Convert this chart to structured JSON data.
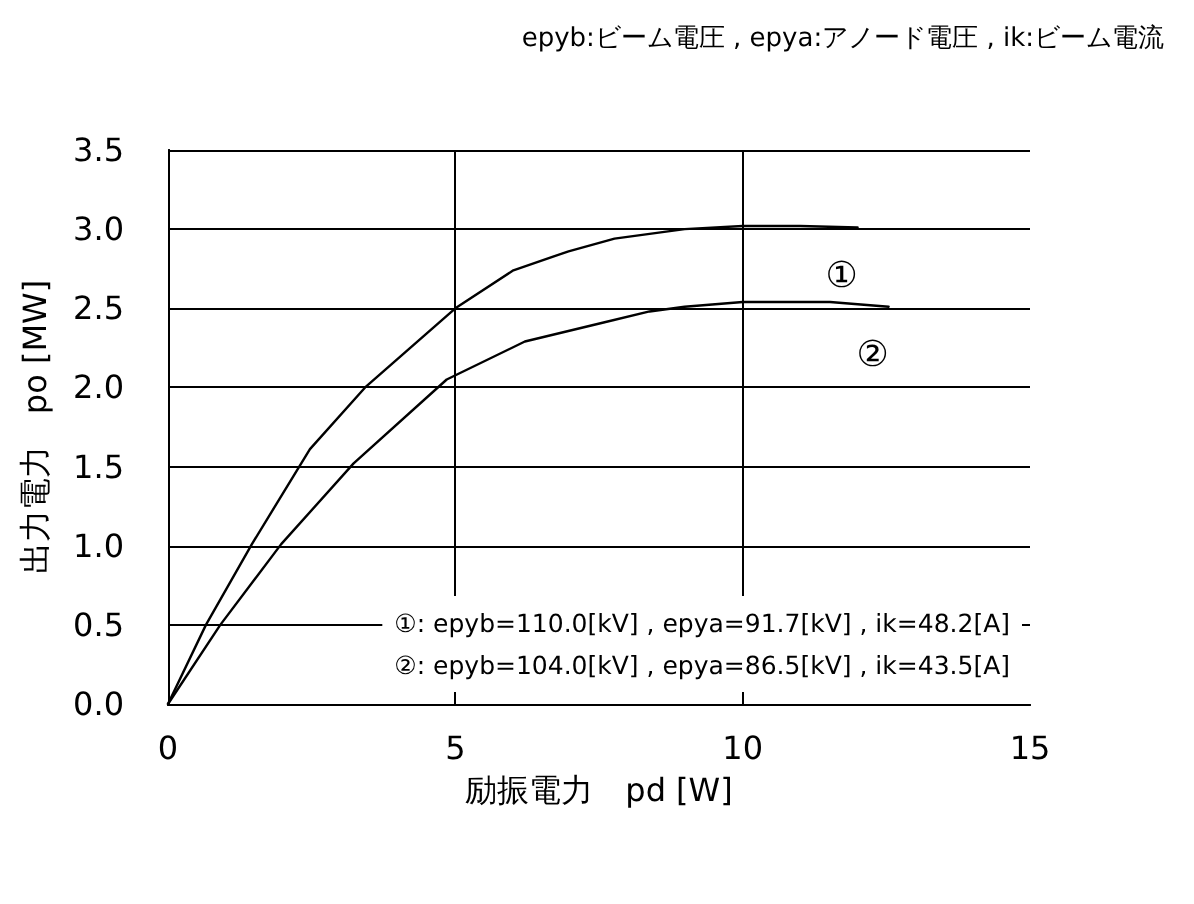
{
  "chart_data": {
    "type": "line",
    "title": "epyb:ビーム電圧 , epya:アノード電圧 , ik:ビーム電流",
    "xlabel": "励振電力　pd [W]",
    "ylabel": "出力電力　po [MW]",
    "series": [
      {
        "name": "①",
        "color": "#000000",
        "x": [
          0,
          0.66,
          1.46,
          2.47,
          3.43,
          5,
          6.01,
          6.97,
          7.77,
          8.99,
          10,
          11,
          12
        ],
        "values": [
          0,
          0.5,
          1.01,
          1.61,
          2.0,
          2.5,
          2.74,
          2.86,
          2.94,
          3.0,
          3.02,
          3.02,
          3.01
        ]
      },
      {
        "name": "②",
        "color": "#000000",
        "x": [
          0,
          0.91,
          1.97,
          3.23,
          4.85,
          6.21,
          7.58,
          8.38,
          8.99,
          10,
          11.52,
          12.54
        ],
        "values": [
          0,
          0.5,
          1.01,
          1.52,
          2.05,
          2.29,
          2.41,
          2.48,
          2.51,
          2.54,
          2.54,
          2.51
        ]
      }
    ],
    "annotations": [
      "①: epyb=110.0[kV] , epya=91.7[kV] , ik=48.2[A]",
      "②: epyb=104.0[kV] , epya=86.5[kV] , ik=43.5[A]"
    ],
    "xlim": [
      0,
      15
    ],
    "xticks": [
      0,
      5,
      10,
      15
    ],
    "ylim": [
      0,
      3.5
    ],
    "yticks": [
      {
        "value": 0,
        "label": "0.0"
      },
      {
        "value": 0.5,
        "label": "0.5"
      },
      {
        "value": 1,
        "label": "1.0"
      },
      {
        "value": 1.5,
        "label": "1.5"
      },
      {
        "value": 2,
        "label": "2.0"
      },
      {
        "value": 2.5,
        "label": "2.5"
      },
      {
        "value": 3,
        "label": "3.0"
      },
      {
        "value": 3.5,
        "label": "3.5"
      }
    ],
    "grid": true,
    "marker": "none",
    "line_style": "solid"
  }
}
